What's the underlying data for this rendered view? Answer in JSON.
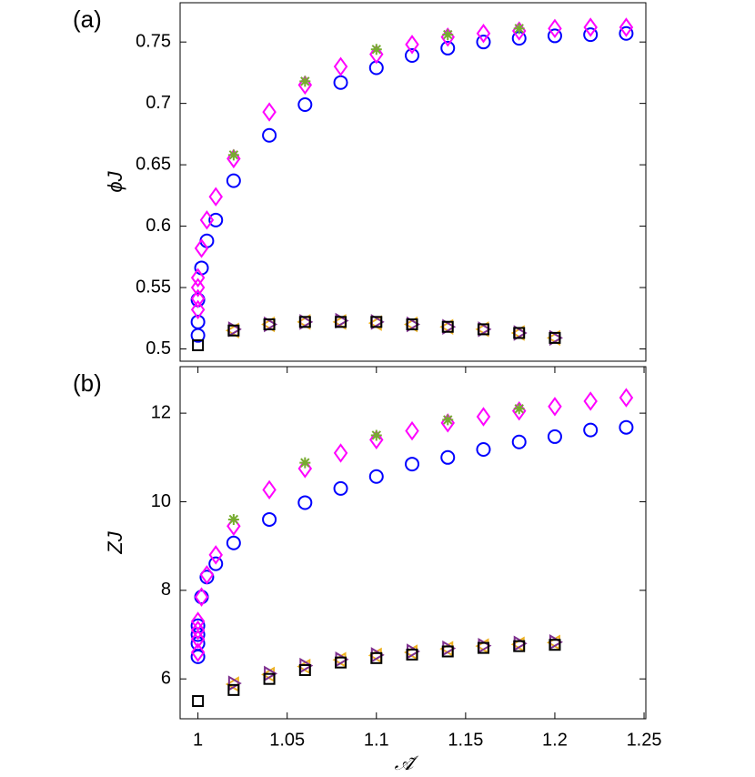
{
  "chart_data": [
    {
      "type": "scatter",
      "label": "(a)",
      "ylabel": "ϕJ",
      "xlim": [
        0.99,
        1.251
      ],
      "ylim": [
        0.49,
        0.782
      ],
      "yticks": [
        0.5,
        0.55,
        0.6,
        0.65,
        0.7,
        0.75
      ],
      "series": [
        {
          "marker": "circle",
          "color": "#0000ff",
          "x": [
            1,
            1,
            1,
            1.002,
            1.005,
            1.01,
            1.02,
            1.04,
            1.06,
            1.08,
            1.1,
            1.12,
            1.14,
            1.16,
            1.18,
            1.2,
            1.22,
            1.24
          ],
          "values": [
            0.511,
            0.522,
            0.54,
            0.566,
            0.588,
            0.605,
            0.637,
            0.674,
            0.699,
            0.717,
            0.729,
            0.739,
            0.745,
            0.75,
            0.753,
            0.755,
            0.756,
            0.757
          ]
        },
        {
          "marker": "diamond",
          "color": "#ff00ff",
          "x": [
            1,
            1,
            1,
            1,
            1.002,
            1.005,
            1.01,
            1.02,
            1.04,
            1.06,
            1.08,
            1.1,
            1.12,
            1.14,
            1.16,
            1.18,
            1.2,
            1.22,
            1.24
          ],
          "values": [
            0.532,
            0.541,
            0.55,
            0.558,
            0.582,
            0.605,
            0.624,
            0.655,
            0.693,
            0.715,
            0.73,
            0.74,
            0.748,
            0.754,
            0.757,
            0.759,
            0.761,
            0.762,
            0.762
          ]
        },
        {
          "marker": "asterisk",
          "color": "#77ac30",
          "x": [
            1.02,
            1.06,
            1.1,
            1.14,
            1.18
          ],
          "values": [
            0.658,
            0.718,
            0.744,
            0.756,
            0.761
          ]
        },
        {
          "marker": "triangle-left",
          "color": "#edb120",
          "x": [
            1.02,
            1.04,
            1.06,
            1.08,
            1.1,
            1.12,
            1.14,
            1.16,
            1.18,
            1.2
          ],
          "values": [
            0.515,
            0.52,
            0.522,
            0.522,
            0.521,
            0.52,
            0.518,
            0.516,
            0.513,
            0.509
          ]
        },
        {
          "marker": "triangle-right",
          "color": "#7e2f8e",
          "x": [
            1.02,
            1.04,
            1.06,
            1.08,
            1.1,
            1.12,
            1.14,
            1.16,
            1.18,
            1.2
          ],
          "values": [
            0.516,
            0.52,
            0.522,
            0.523,
            0.522,
            0.52,
            0.518,
            0.516,
            0.513,
            0.509
          ]
        },
        {
          "marker": "square",
          "color": "#000000",
          "x": [
            1,
            1.02,
            1.04,
            1.06,
            1.08,
            1.1,
            1.12,
            1.14,
            1.16,
            1.18,
            1.2
          ],
          "values": [
            0.503,
            0.515,
            0.52,
            0.522,
            0.522,
            0.522,
            0.52,
            0.518,
            0.516,
            0.513,
            0.509
          ]
        }
      ]
    },
    {
      "type": "scatter",
      "label": "(b)",
      "ylabel": "ZJ",
      "xlabel": "𝒜̃",
      "xlim": [
        0.99,
        1.251
      ],
      "ylim": [
        5.1,
        13.05
      ],
      "yticks": [
        6,
        8,
        10,
        12
      ],
      "xticks": [
        1,
        1.05,
        1.1,
        1.15,
        1.2,
        1.25
      ],
      "series": [
        {
          "marker": "circle",
          "color": "#0000ff",
          "x": [
            1,
            1,
            1,
            1,
            1.002,
            1.005,
            1.01,
            1.02,
            1.04,
            1.06,
            1.08,
            1.1,
            1.12,
            1.14,
            1.16,
            1.18,
            1.2,
            1.22,
            1.24
          ],
          "values": [
            6.5,
            6.8,
            7.0,
            7.2,
            7.85,
            8.3,
            8.6,
            9.07,
            9.6,
            9.98,
            10.3,
            10.57,
            10.85,
            11.0,
            11.18,
            11.35,
            11.47,
            11.62,
            11.68
          ]
        },
        {
          "marker": "diamond",
          "color": "#ff00ff",
          "x": [
            1,
            1,
            1,
            1,
            1.002,
            1.005,
            1.01,
            1.02,
            1.04,
            1.06,
            1.08,
            1.1,
            1.12,
            1.14,
            1.16,
            1.18,
            1.2,
            1.22,
            1.24
          ],
          "values": [
            6.6,
            6.9,
            7.1,
            7.3,
            7.85,
            8.35,
            8.8,
            9.45,
            10.27,
            10.75,
            11.1,
            11.4,
            11.6,
            11.78,
            11.92,
            12.05,
            12.15,
            12.27,
            12.35
          ]
        },
        {
          "marker": "asterisk",
          "color": "#77ac30",
          "x": [
            1.02,
            1.06,
            1.1,
            1.14,
            1.18
          ],
          "values": [
            9.6,
            10.88,
            11.5,
            11.85,
            12.1
          ]
        },
        {
          "marker": "triangle-left",
          "color": "#edb120",
          "x": [
            1.02,
            1.04,
            1.06,
            1.08,
            1.1,
            1.12,
            1.14,
            1.16,
            1.18,
            1.2
          ],
          "values": [
            5.88,
            6.1,
            6.28,
            6.43,
            6.53,
            6.6,
            6.68,
            6.74,
            6.78,
            6.82
          ]
        },
        {
          "marker": "triangle-right",
          "color": "#7e2f8e",
          "x": [
            1.02,
            1.04,
            1.06,
            1.08,
            1.1,
            1.12,
            1.14,
            1.16,
            1.18,
            1.2
          ],
          "values": [
            5.9,
            6.12,
            6.3,
            6.44,
            6.54,
            6.62,
            6.69,
            6.75,
            6.8,
            6.83
          ]
        },
        {
          "marker": "square",
          "color": "#000000",
          "x": [
            1,
            1.02,
            1.04,
            1.06,
            1.08,
            1.1,
            1.12,
            1.14,
            1.16,
            1.18,
            1.2
          ],
          "values": [
            5.5,
            5.75,
            6.0,
            6.2,
            6.37,
            6.47,
            6.55,
            6.62,
            6.7,
            6.74,
            6.77
          ]
        }
      ]
    }
  ]
}
